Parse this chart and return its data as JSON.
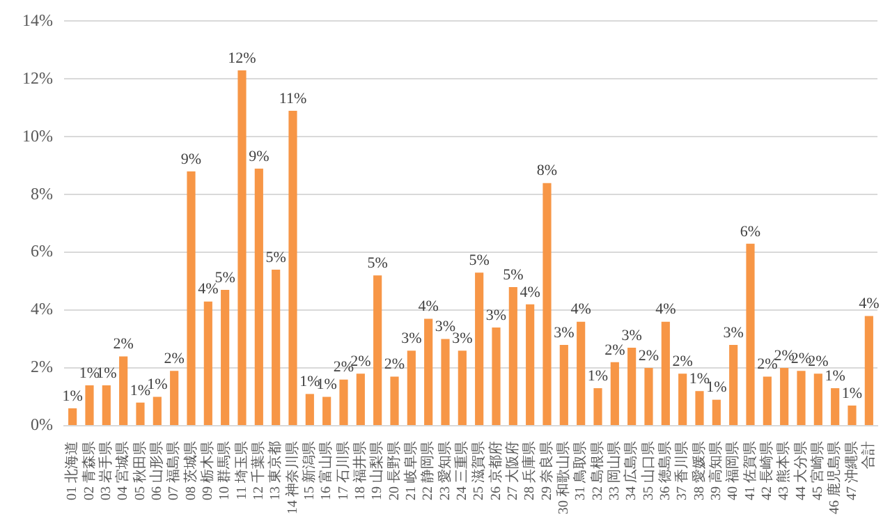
{
  "chart_data": {
    "type": "bar",
    "categories": [
      "01 北海道",
      "02 青森県",
      "03 岩手県",
      "04 宮城県",
      "05 秋田県",
      "06 山形県",
      "07 福島県",
      "08 茨城県",
      "09 栃木県",
      "10 群馬県",
      "11 埼玉県",
      "12 千葉県",
      "13 東京都",
      "14 神奈川県",
      "15 新潟県",
      "16 富山県",
      "17 石川県",
      "18 福井県",
      "19 山梨県",
      "20 長野県",
      "21 岐阜県",
      "22 静岡県",
      "23 愛知県",
      "24 三重県",
      "25 滋賀県",
      "26 京都府",
      "27 大阪府",
      "28 兵庫県",
      "29 奈良県",
      "30 和歌山県",
      "31 鳥取県",
      "32 島根県",
      "33 岡山県",
      "34 広島県",
      "35 山口県",
      "36 徳島県",
      "37 香川県",
      "38 愛媛県",
      "39 高知県",
      "40 福岡県",
      "41 佐賀県",
      "42 長崎県",
      "43 熊本県",
      "44 大分県",
      "45 宮崎県",
      "46 鹿児島県",
      "47 沖縄県",
      "合計"
    ],
    "values": [
      0.6,
      1.4,
      1.4,
      2.4,
      0.8,
      1.0,
      1.9,
      8.8,
      4.3,
      4.7,
      12.3,
      8.9,
      5.4,
      10.9,
      1.1,
      1.0,
      1.6,
      1.8,
      5.2,
      1.7,
      2.6,
      3.7,
      3.0,
      2.6,
      5.3,
      3.4,
      4.8,
      4.2,
      8.4,
      2.8,
      3.6,
      1.3,
      2.2,
      2.7,
      2.0,
      3.6,
      1.8,
      1.2,
      0.9,
      2.8,
      6.3,
      1.7,
      2.0,
      1.9,
      1.8,
      1.3,
      0.7,
      3.8
    ],
    "value_labels": [
      "1%",
      "1%",
      "1%",
      "2%",
      "1%",
      "1%",
      "2%",
      "9%",
      "4%",
      "5%",
      "12%",
      "9%",
      "5%",
      "11%",
      "1%",
      "1%",
      "2%",
      "2%",
      "5%",
      "2%",
      "3%",
      "4%",
      "3%",
      "3%",
      "5%",
      "3%",
      "5%",
      "4%",
      "8%",
      "3%",
      "4%",
      "1%",
      "2%",
      "3%",
      "2%",
      "4%",
      "2%",
      "1%",
      "1%",
      "3%",
      "6%",
      "2%",
      "2%",
      "2%",
      "2%",
      "1%",
      "1%",
      "4%"
    ],
    "color": "#f79646",
    "ylim": [
      0,
      14
    ],
    "yticks": [
      {
        "value": 0,
        "label": "0%"
      },
      {
        "value": 2,
        "label": "2%"
      },
      {
        "value": 4,
        "label": "4%"
      },
      {
        "value": 6,
        "label": "6%"
      },
      {
        "value": 8,
        "label": "8%"
      },
      {
        "value": 10,
        "label": "10%"
      },
      {
        "value": 12,
        "label": "12%"
      },
      {
        "value": 14,
        "label": "14%"
      }
    ],
    "grid": "y",
    "legend": false
  }
}
